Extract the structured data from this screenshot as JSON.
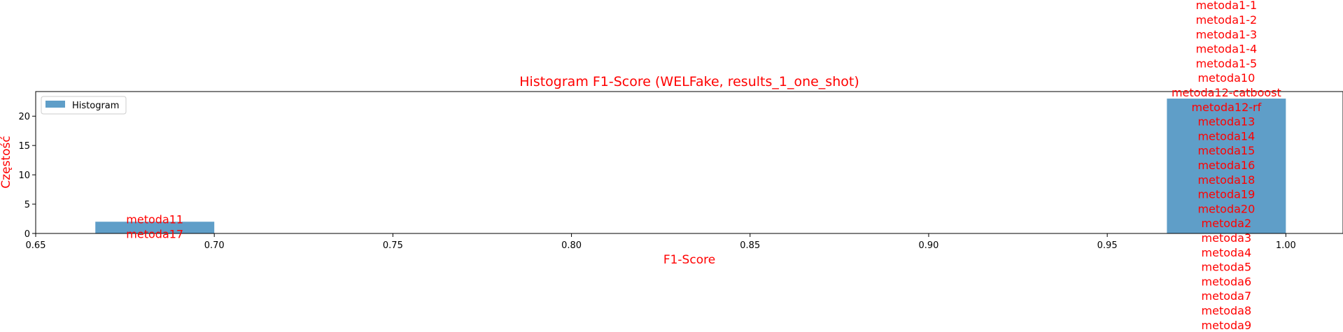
{
  "chart_data": {
    "type": "bar",
    "title": "Histogram F1-Score (WELFake, results_1_one_shot)",
    "xlabel": "F1-Score",
    "ylabel": "Częstość",
    "xlim": [
      0.65,
      1.016
    ],
    "ylim": [
      0,
      24.2
    ],
    "xticks": [
      "0.65",
      "0.70",
      "0.75",
      "0.80",
      "0.85",
      "0.90",
      "0.95",
      "1.00"
    ],
    "yticks": [
      "0",
      "5",
      "10",
      "15",
      "20"
    ],
    "legend": {
      "position": "top-left",
      "entries": [
        "Histogram"
      ]
    },
    "bar_color": "#5f9ec8",
    "text_color": "#ff0000",
    "bars": [
      {
        "x0": 0.6667,
        "x1": 0.7,
        "count": 2,
        "labels": [
          "metoda11",
          "metoda17"
        ]
      },
      {
        "x0": 0.9667,
        "x1": 1.0,
        "count": 23,
        "labels": [
          "metoda1-1",
          "metoda1-2",
          "metoda1-3",
          "metoda1-4",
          "metoda1-5",
          "metoda10",
          "metoda12-catboost",
          "metoda12-rf",
          "metoda13",
          "metoda14",
          "metoda15",
          "metoda16",
          "metoda18",
          "metoda19",
          "metoda20",
          "metoda2",
          "metoda3",
          "metoda4",
          "metoda5",
          "metoda6",
          "metoda7",
          "metoda8",
          "metoda9"
        ]
      }
    ]
  }
}
